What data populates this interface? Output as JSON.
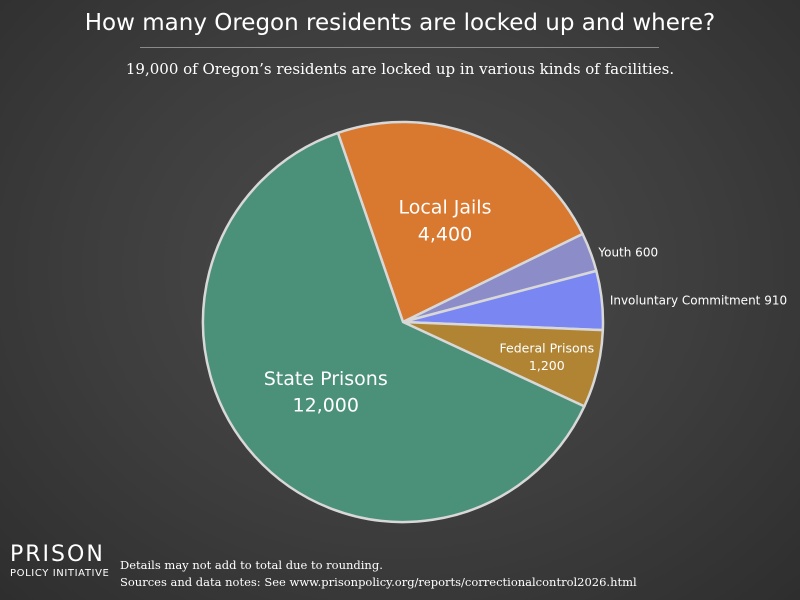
{
  "header": {
    "title": "How many Oregon residents are locked up and where?",
    "subtitle": "19,000 of Oregon’s residents are locked up in various kinds of facilities."
  },
  "chart_data": {
    "type": "pie",
    "slices": [
      {
        "label": "Local Jails",
        "display_value": "4,400",
        "value": 4400,
        "color": "#d9782f"
      },
      {
        "label": "Youth",
        "display_value": "600",
        "value": 600,
        "color": "#8b8cc8"
      },
      {
        "label": "Involuntary Commitment",
        "display_value": "910",
        "value": 910,
        "color": "#7a86f2"
      },
      {
        "label": "Federal Prisons",
        "display_value": "1,200",
        "value": 1200,
        "color": "#b08433"
      },
      {
        "label": "State Prisons",
        "display_value": "12,000",
        "value": 12000,
        "color": "#4b9079"
      }
    ],
    "outline_color": "#d8d8d8"
  },
  "logo": {
    "line1": "PRISON",
    "line2": "POLICY INITIATIVE"
  },
  "footer": {
    "note1": "Details may not add to total due to rounding.",
    "note2": "Sources and data notes: See www.prisonpolicy.org/reports/correctionalcontrol2026.html"
  }
}
